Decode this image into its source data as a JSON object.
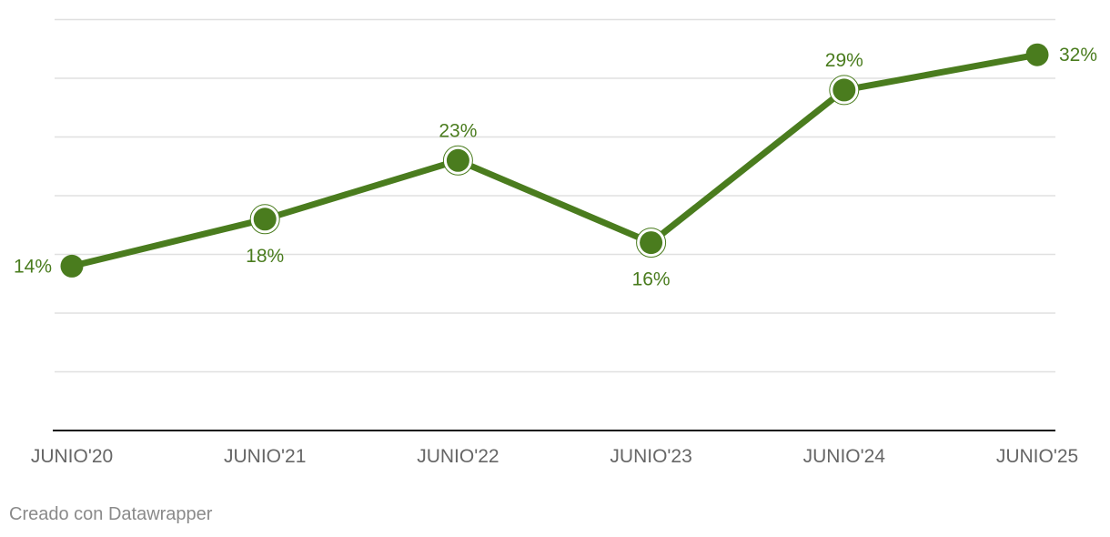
{
  "chart_data": {
    "type": "line",
    "title": "",
    "xlabel": "",
    "ylabel": "",
    "categories": [
      "JUNIO'20",
      "JUNIO'21",
      "JUNIO'22",
      "JUNIO'23",
      "JUNIO'24",
      "JUNIO'25"
    ],
    "series": [
      {
        "values": [
          14,
          18,
          23,
          16,
          29,
          32
        ],
        "color": "#4a7c1e"
      }
    ],
    "data_labels": [
      "14%",
      "18%",
      "23%",
      "16%",
      "29%",
      "32%"
    ],
    "ylim": [
      0,
      35
    ],
    "grid": true,
    "axis_line_color": "#111111",
    "grid_color": "#e0e0e0"
  },
  "footer": {
    "credit": "Creado con Datawrapper"
  }
}
